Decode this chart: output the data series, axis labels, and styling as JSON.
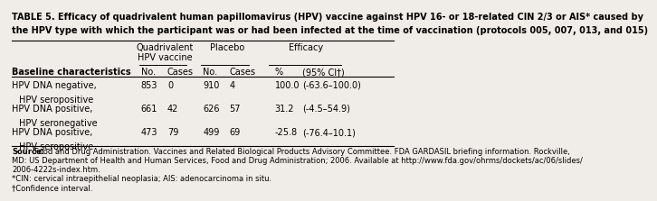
{
  "title_line1": "TABLE 5. Efficacy of quadrivalent human papillomavirus (HPV) vaccine against HPV 16- or 18-related CIN 2/3 or AIS* caused by",
  "title_line2": "the HPV type with which the participant was or had been infected at the time of vaccination (protocols 005, 007, 013, and 015)",
  "bg_color": "#f0ede8",
  "title_fontsize": 7.0,
  "header_fontsize": 7.0,
  "data_fontsize": 7.0,
  "source_fontsize": 6.0,
  "col_x": {
    "label": 0.008,
    "vax_no": 0.34,
    "vax_cases": 0.408,
    "pla_no": 0.5,
    "pla_cases": 0.568,
    "eff_pct": 0.685,
    "eff_ci": 0.755
  },
  "rows": [
    {
      "label1": "HPV DNA negative,",
      "label2": "  HPV seropositive",
      "vax_no": "853",
      "vax_cases": "0",
      "pla_no": "910",
      "pla_cases": "4",
      "eff_pct": "100.0",
      "eff_ci": "(-63.6–100.0)"
    },
    {
      "label1": "HPV DNA positive,",
      "label2": "  HPV seronegative",
      "vax_no": "661",
      "vax_cases": "42",
      "pla_no": "626",
      "pla_cases": "57",
      "eff_pct": "31.2",
      "eff_ci": "(-4.5–54.9)"
    },
    {
      "label1": "HPV DNA positive,",
      "label2": "  HPV seropositive",
      "vax_no": "473",
      "vax_cases": "79",
      "pla_no": "499",
      "pla_cases": "69",
      "eff_pct": "-25.8",
      "eff_ci": "(-76.4–10.1)"
    }
  ],
  "source_line1": "Source: Food and Drug Administration. Vaccines and Related Biological Products Advisory Committee. FDA GARDASIL briefing information. Rockville,",
  "source_line2": "MD: US Department of Health and Human Services, Food and Drug Administration; 2006. Available at http://www.fda.gov/ohrms/dockets/ac/06/slides/",
  "source_line3": "2006-4222s-index.htm.",
  "source_line4": "*CIN: cervical intraepithelial neoplasia; AIS: adenocarcinoma in situ.",
  "source_line5": "†Confidence interval."
}
